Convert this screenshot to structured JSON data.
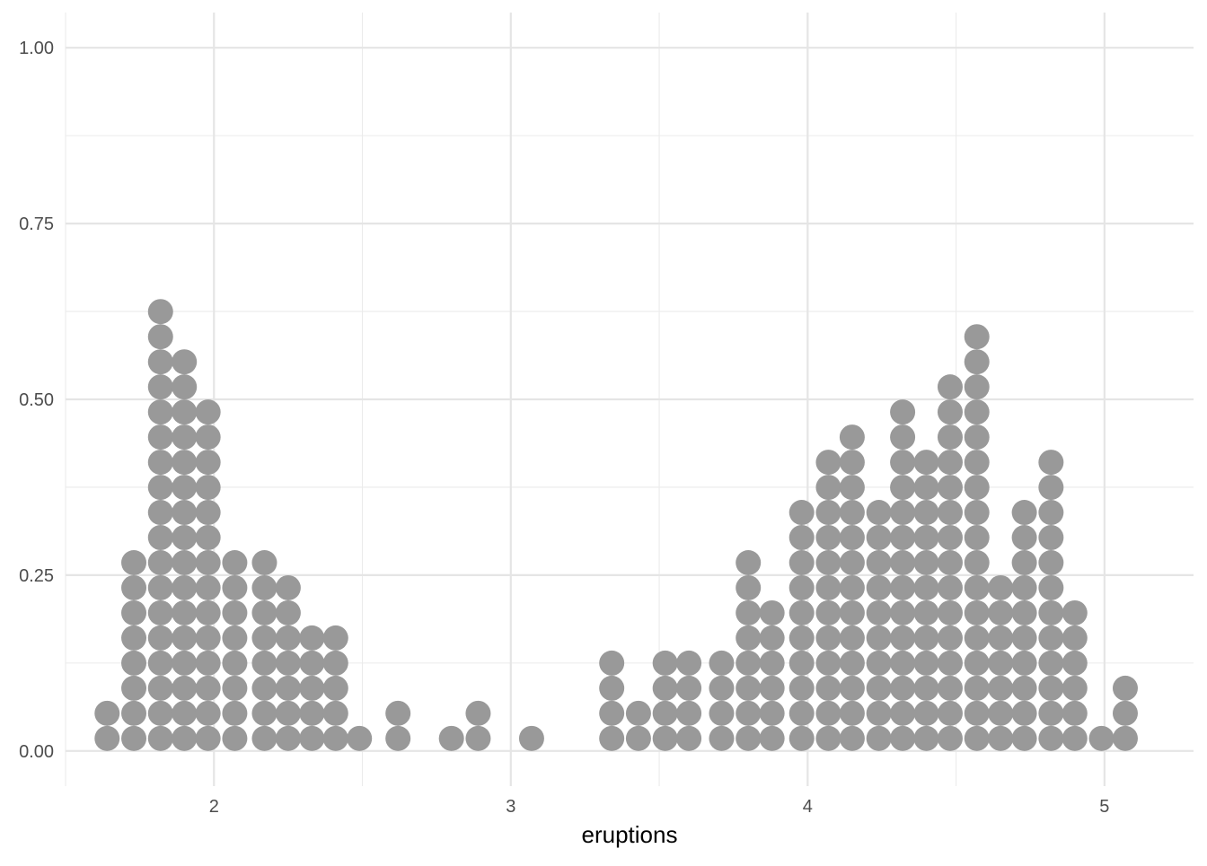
{
  "chart_data": {
    "type": "dotplot",
    "title": "",
    "xlabel": "eruptions",
    "ylabel": "",
    "xlim": [
      1.5,
      5.3
    ],
    "ylim": [
      -0.05,
      1.05
    ],
    "x_ticks": [
      2,
      3,
      4,
      5
    ],
    "x_tick_labels": [
      "2",
      "3",
      "4",
      "5"
    ],
    "y_ticks": [
      0,
      0.25,
      0.5,
      0.75,
      1
    ],
    "y_tick_labels": [
      "0.00",
      "0.25",
      "0.50",
      "0.75",
      "1.00"
    ],
    "dot_color": "#999999",
    "grid": true,
    "dot_step_y": 0.0357,
    "stacks": [
      {
        "x": 1.64,
        "count": 2
      },
      {
        "x": 1.73,
        "count": 8
      },
      {
        "x": 1.82,
        "count": 18
      },
      {
        "x": 1.9,
        "count": 16
      },
      {
        "x": 1.98,
        "count": 14
      },
      {
        "x": 2.07,
        "count": 8
      },
      {
        "x": 2.17,
        "count": 8
      },
      {
        "x": 2.25,
        "count": 7
      },
      {
        "x": 2.33,
        "count": 5
      },
      {
        "x": 2.41,
        "count": 5
      },
      {
        "x": 2.49,
        "count": 1
      },
      {
        "x": 2.62,
        "count": 2
      },
      {
        "x": 2.8,
        "count": 1
      },
      {
        "x": 2.89,
        "count": 2
      },
      {
        "x": 3.07,
        "count": 1
      },
      {
        "x": 3.34,
        "count": 4
      },
      {
        "x": 3.43,
        "count": 2
      },
      {
        "x": 3.52,
        "count": 4
      },
      {
        "x": 3.6,
        "count": 4
      },
      {
        "x": 3.71,
        "count": 4
      },
      {
        "x": 3.8,
        "count": 8
      },
      {
        "x": 3.88,
        "count": 6
      },
      {
        "x": 3.98,
        "count": 10
      },
      {
        "x": 4.07,
        "count": 12
      },
      {
        "x": 4.15,
        "count": 13
      },
      {
        "x": 4.24,
        "count": 10
      },
      {
        "x": 4.32,
        "count": 14
      },
      {
        "x": 4.4,
        "count": 12
      },
      {
        "x": 4.48,
        "count": 15
      },
      {
        "x": 4.57,
        "count": 17
      },
      {
        "x": 4.65,
        "count": 7
      },
      {
        "x": 4.73,
        "count": 10
      },
      {
        "x": 4.82,
        "count": 12
      },
      {
        "x": 4.9,
        "count": 6
      },
      {
        "x": 4.99,
        "count": 1
      },
      {
        "x": 5.07,
        "count": 3
      }
    ]
  }
}
